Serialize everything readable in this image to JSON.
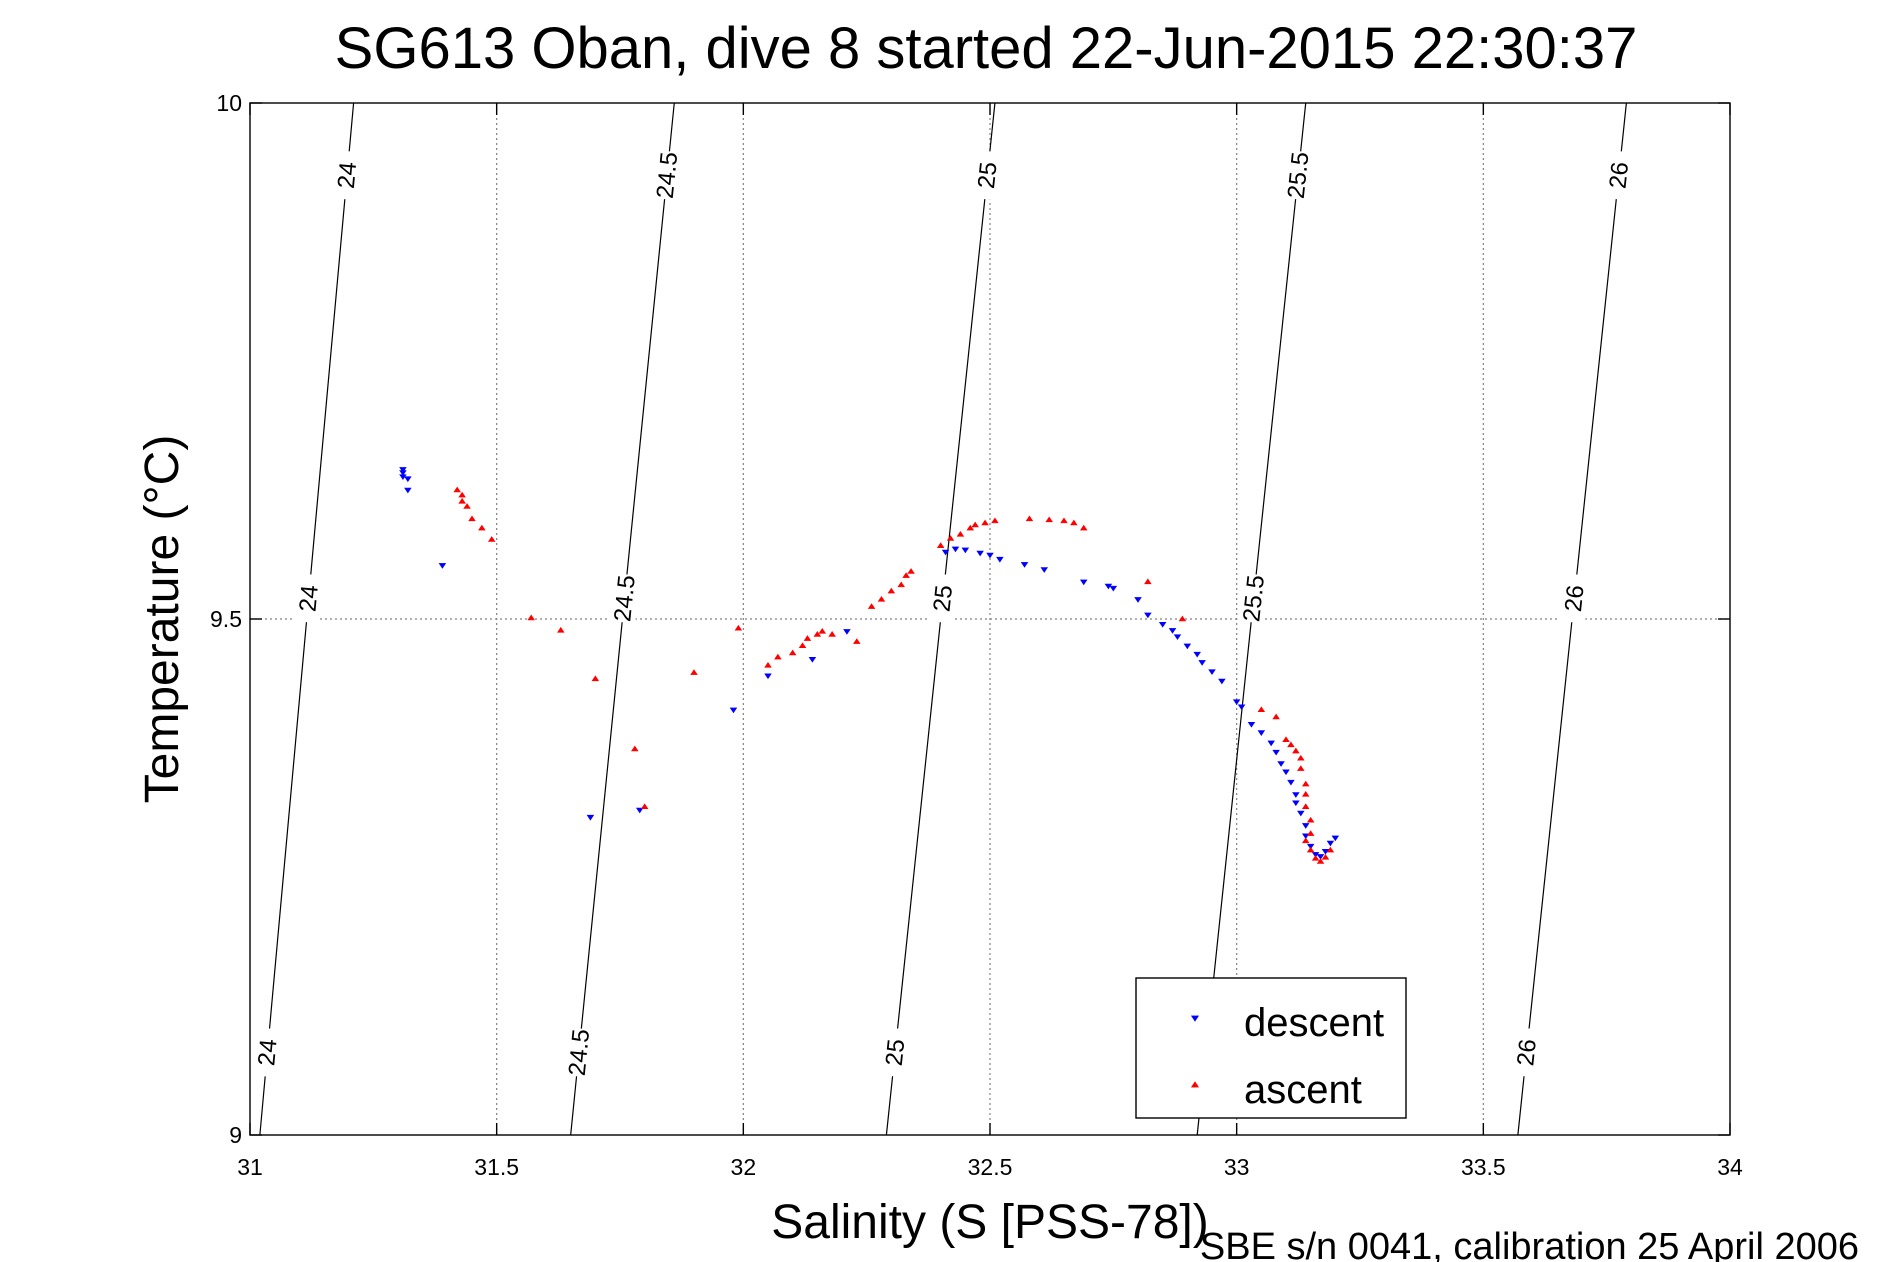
{
  "chart_data": {
    "type": "scatter",
    "title": "SG613 Oban, dive 8 started 22-Jun-2015 22:30:37",
    "xlabel": "Salinity (S [PSS-78])",
    "ylabel": "Temperature (°C)",
    "xlim": [
      31,
      34
    ],
    "ylim": [
      9,
      10
    ],
    "x_ticks": [
      "31",
      "31.5",
      "32",
      "32.5",
      "33",
      "33.5",
      "34"
    ],
    "y_ticks": [
      "9",
      "9.5",
      "10"
    ],
    "grid": true,
    "legend_position": "bottom-right",
    "footer": "SBE s/n 0041, calibration 25 April 2006",
    "density_contours": [
      {
        "label": "24",
        "s_at_t9": 31.02,
        "s_at_t10": 31.21
      },
      {
        "label": "24.5",
        "s_at_t9": 31.65,
        "s_at_t10": 31.86
      },
      {
        "label": "25",
        "s_at_t9": 32.29,
        "s_at_t10": 32.51
      },
      {
        "label": "25.5",
        "s_at_t9": 32.92,
        "s_at_t10": 33.14
      },
      {
        "label": "26",
        "s_at_t9": 33.57,
        "s_at_t10": 33.79
      }
    ],
    "series": [
      {
        "name": "descent",
        "color": "#0000ff",
        "marker": "triangle-down",
        "points": [
          [
            31.31,
            9.645
          ],
          [
            31.31,
            9.642
          ],
          [
            31.31,
            9.638
          ],
          [
            31.32,
            9.636
          ],
          [
            31.32,
            9.625
          ],
          [
            31.39,
            9.552
          ],
          [
            31.69,
            9.308
          ],
          [
            31.79,
            9.315
          ],
          [
            31.98,
            9.412
          ],
          [
            32.05,
            9.445
          ],
          [
            32.14,
            9.461
          ],
          [
            32.21,
            9.488
          ],
          [
            32.41,
            9.565
          ],
          [
            32.43,
            9.568
          ],
          [
            32.45,
            9.567
          ],
          [
            32.48,
            9.564
          ],
          [
            32.5,
            9.562
          ],
          [
            32.52,
            9.558
          ],
          [
            32.57,
            9.553
          ],
          [
            32.61,
            9.548
          ],
          [
            32.69,
            9.536
          ],
          [
            32.74,
            9.532
          ],
          [
            32.75,
            9.53
          ],
          [
            32.8,
            9.519
          ],
          [
            32.82,
            9.504
          ],
          [
            32.85,
            9.495
          ],
          [
            32.87,
            9.489
          ],
          [
            32.88,
            9.483
          ],
          [
            32.9,
            9.474
          ],
          [
            32.92,
            9.466
          ],
          [
            32.93,
            9.458
          ],
          [
            32.95,
            9.449
          ],
          [
            32.97,
            9.44
          ],
          [
            33.0,
            9.42
          ],
          [
            33.01,
            9.415
          ],
          [
            33.03,
            9.398
          ],
          [
            33.05,
            9.39
          ],
          [
            33.07,
            9.38
          ],
          [
            33.08,
            9.371
          ],
          [
            33.09,
            9.36
          ],
          [
            33.1,
            9.352
          ],
          [
            33.11,
            9.342
          ],
          [
            33.12,
            9.33
          ],
          [
            33.12,
            9.322
          ],
          [
            33.13,
            9.312
          ],
          [
            33.14,
            9.3
          ],
          [
            33.14,
            9.29
          ],
          [
            33.15,
            9.28
          ],
          [
            33.16,
            9.272
          ],
          [
            33.17,
            9.27
          ],
          [
            33.18,
            9.275
          ],
          [
            33.19,
            9.283
          ],
          [
            33.2,
            9.288
          ]
        ]
      },
      {
        "name": "ascent",
        "color": "#ff0000",
        "marker": "triangle-up",
        "points": [
          [
            31.42,
            9.625
          ],
          [
            31.43,
            9.62
          ],
          [
            31.43,
            9.614
          ],
          [
            31.44,
            9.609
          ],
          [
            31.45,
            9.597
          ],
          [
            31.47,
            9.588
          ],
          [
            31.49,
            9.577
          ],
          [
            31.57,
            9.501
          ],
          [
            31.63,
            9.489
          ],
          [
            31.7,
            9.442
          ],
          [
            31.78,
            9.374
          ],
          [
            31.8,
            9.318
          ],
          [
            31.9,
            9.448
          ],
          [
            31.99,
            9.491
          ],
          [
            32.05,
            9.455
          ],
          [
            32.07,
            9.463
          ],
          [
            32.1,
            9.467
          ],
          [
            32.12,
            9.474
          ],
          [
            32.13,
            9.481
          ],
          [
            32.15,
            9.485
          ],
          [
            32.16,
            9.488
          ],
          [
            32.18,
            9.485
          ],
          [
            32.23,
            9.478
          ],
          [
            32.26,
            9.512
          ],
          [
            32.28,
            9.519
          ],
          [
            32.3,
            9.527
          ],
          [
            32.32,
            9.533
          ],
          [
            32.33,
            9.542
          ],
          [
            32.34,
            9.546
          ],
          [
            32.4,
            9.571
          ],
          [
            32.42,
            9.578
          ],
          [
            32.44,
            9.582
          ],
          [
            32.46,
            9.588
          ],
          [
            32.47,
            9.591
          ],
          [
            32.49,
            9.593
          ],
          [
            32.51,
            9.595
          ],
          [
            32.58,
            9.597
          ],
          [
            32.62,
            9.596
          ],
          [
            32.65,
            9.595
          ],
          [
            32.67,
            9.593
          ],
          [
            32.69,
            9.588
          ],
          [
            32.82,
            9.536
          ],
          [
            32.89,
            9.5
          ],
          [
            33.05,
            9.412
          ],
          [
            33.08,
            9.405
          ],
          [
            33.1,
            9.383
          ],
          [
            33.11,
            9.378
          ],
          [
            33.12,
            9.372
          ],
          [
            33.13,
            9.365
          ],
          [
            33.13,
            9.355
          ],
          [
            33.14,
            9.34
          ],
          [
            33.14,
            9.33
          ],
          [
            33.14,
            9.318
          ],
          [
            33.15,
            9.305
          ],
          [
            33.15,
            9.292
          ],
          [
            33.14,
            9.285
          ],
          [
            33.15,
            9.276
          ],
          [
            33.16,
            9.268
          ],
          [
            33.17,
            9.265
          ],
          [
            33.18,
            9.269
          ],
          [
            33.19,
            9.276
          ]
        ]
      }
    ]
  }
}
